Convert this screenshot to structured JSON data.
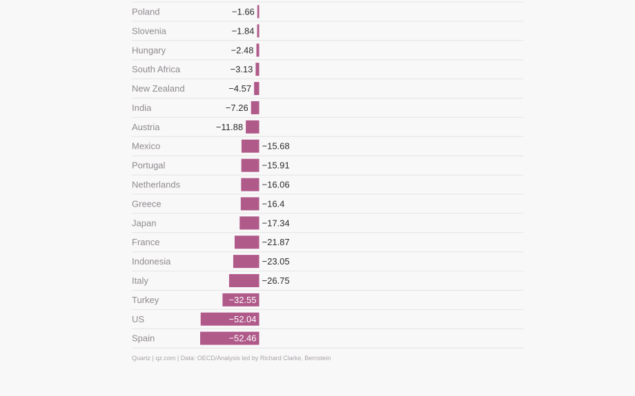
{
  "chart_data": {
    "type": "bar",
    "orientation": "horizontal",
    "categories": [
      "Poland",
      "Slovenia",
      "Hungary",
      "South Africa",
      "New Zealand",
      "India",
      "Austria",
      "Mexico",
      "Portugal",
      "Netherlands",
      "Greece",
      "Japan",
      "France",
      "Indonesia",
      "Italy",
      "Turkey",
      "US",
      "Spain"
    ],
    "values": [
      -1.66,
      -1.84,
      -2.48,
      -3.13,
      -4.57,
      -7.26,
      -11.88,
      -15.68,
      -15.91,
      -16.06,
      -16.4,
      -17.34,
      -21.87,
      -23.05,
      -26.75,
      -32.55,
      -52.04,
      -52.46
    ],
    "value_labels": [
      "−1.66",
      "−1.84",
      "−2.48",
      "−3.13",
      "−4.57",
      "−7.26",
      "−11.88",
      "−15.68",
      "−15.91",
      "−16.06",
      "−16.4",
      "−17.34",
      "−21.87",
      "−23.05",
      "−26.75",
      "−32.55",
      "−52.04",
      "−52.46"
    ],
    "bar_color": "#b05a8a",
    "grid": true,
    "legend": "none"
  },
  "footer": {
    "source": "Quartz | qz.com | Data: OECD/Analysis led by Richard Clarke, Bernstein"
  }
}
